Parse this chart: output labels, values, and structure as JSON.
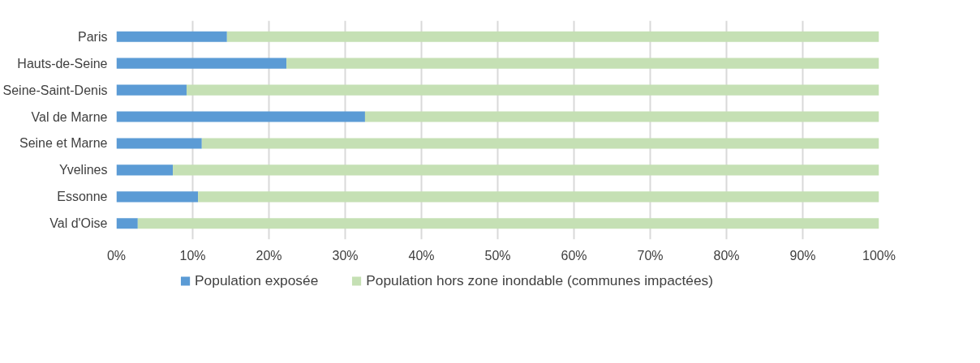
{
  "chart_data": {
    "type": "bar",
    "orientation": "horizontal",
    "stacked": true,
    "categories": [
      "Paris",
      "Hauts-de-Seine",
      "Seine-Saint-Denis",
      "Val de Marne",
      "Seine et Marne",
      "Yvelines",
      "Essonne",
      "Val d'Oise"
    ],
    "series": [
      {
        "name": "Population exposée",
        "color": "#5b9bd5",
        "values": [
          14.5,
          22.3,
          9.2,
          32.6,
          11.2,
          7.4,
          10.7,
          2.8
        ]
      },
      {
        "name": "Population hors zone inondable (communes impactées)",
        "color": "#c5e0b4",
        "values": [
          85.5,
          77.7,
          90.8,
          67.4,
          88.8,
          92.6,
          89.3,
          97.2
        ]
      }
    ],
    "xlim": [
      0,
      100
    ],
    "xticks": [
      {
        "value": 0,
        "label": "0%"
      },
      {
        "value": 10,
        "label": "10%"
      },
      {
        "value": 20,
        "label": "20%"
      },
      {
        "value": 30,
        "label": "30%"
      },
      {
        "value": 40,
        "label": "40%"
      },
      {
        "value": 50,
        "label": "50%"
      },
      {
        "value": 60,
        "label": "60%"
      },
      {
        "value": 70,
        "label": "70%"
      },
      {
        "value": 80,
        "label": "80%"
      },
      {
        "value": 90,
        "label": "90%"
      },
      {
        "value": 100,
        "label": "100%"
      }
    ],
    "grid": "x",
    "legend": "bottom"
  }
}
